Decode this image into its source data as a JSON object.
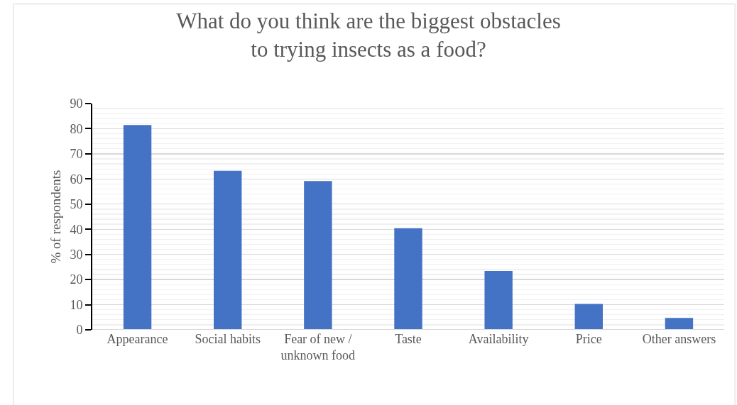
{
  "chart_data": {
    "type": "bar",
    "title": "What do you think are the biggest obstacles to trying insects as a food?",
    "ylabel": "% of respondents",
    "categories": [
      "Appearance",
      "Social habits",
      "Fear of new / unknown food",
      "Taste",
      "Availability",
      "Price",
      "Other answers"
    ],
    "values": [
      81.5,
      63.3,
      59.2,
      40.4,
      23.4,
      10.3,
      4.7
    ],
    "color": "#4472c4",
    "ylim": [
      0,
      90
    ],
    "yticks": [
      0,
      10,
      20,
      30,
      40,
      50,
      60,
      70,
      80,
      90
    ],
    "grid": "y"
  }
}
